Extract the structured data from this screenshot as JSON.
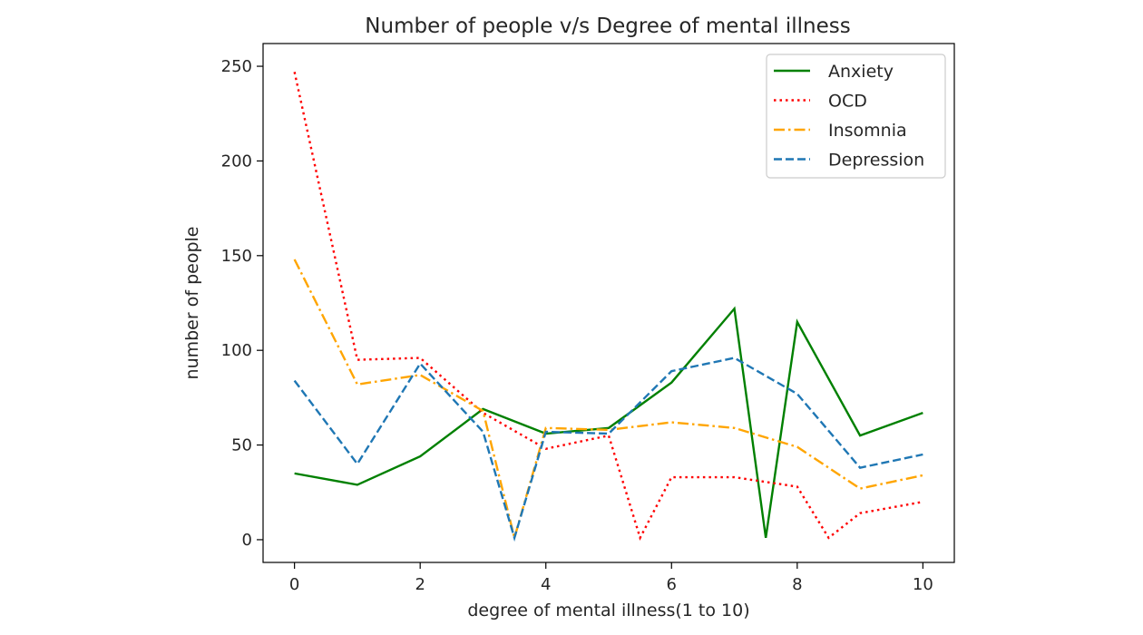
{
  "chart_data": {
    "type": "line",
    "title": "Number of people v/s Degree of mental illness",
    "xlabel": "degree of mental illness(1 to 10)",
    "ylabel": "number of people",
    "xlim": [
      -0.5,
      10.5
    ],
    "ylim": [
      -12,
      262
    ],
    "xticks": [
      0,
      2,
      4,
      6,
      8,
      10
    ],
    "yticks": [
      0,
      50,
      100,
      150,
      200,
      250
    ],
    "grid": false,
    "legend_position": "upper right",
    "series": [
      {
        "name": "Anxiety",
        "color": "#008000",
        "linestyle": "solid",
        "x": [
          0,
          1,
          2,
          3,
          4,
          5,
          6,
          7,
          7.5,
          8,
          9,
          10
        ],
        "y": [
          35,
          29,
          44,
          69,
          56,
          59,
          83,
          122,
          1,
          115,
          55,
          67
        ]
      },
      {
        "name": "OCD",
        "color": "#ff0000",
        "linestyle": "dotted",
        "x": [
          0,
          1,
          2,
          3,
          4,
          5,
          5.5,
          6,
          7,
          8,
          8.5,
          9,
          10
        ],
        "y": [
          247,
          95,
          96,
          67,
          48,
          55,
          1,
          33,
          33,
          28,
          1,
          14,
          20
        ]
      },
      {
        "name": "Insomnia",
        "color": "#ffa500",
        "linestyle": "dashdot",
        "x": [
          0,
          1,
          2,
          3,
          3.5,
          4,
          5,
          6,
          7,
          8,
          9,
          10
        ],
        "y": [
          148,
          82,
          87,
          68,
          1,
          59,
          58,
          62,
          59,
          49,
          27,
          34
        ]
      },
      {
        "name": "Depression",
        "color": "#1f77b4",
        "linestyle": "dashed",
        "x": [
          0,
          1,
          2,
          3,
          3.5,
          4,
          5,
          6,
          7,
          8,
          9,
          10
        ],
        "y": [
          84,
          40,
          93,
          57,
          1,
          57,
          56,
          89,
          96,
          77,
          38,
          45
        ]
      }
    ]
  }
}
